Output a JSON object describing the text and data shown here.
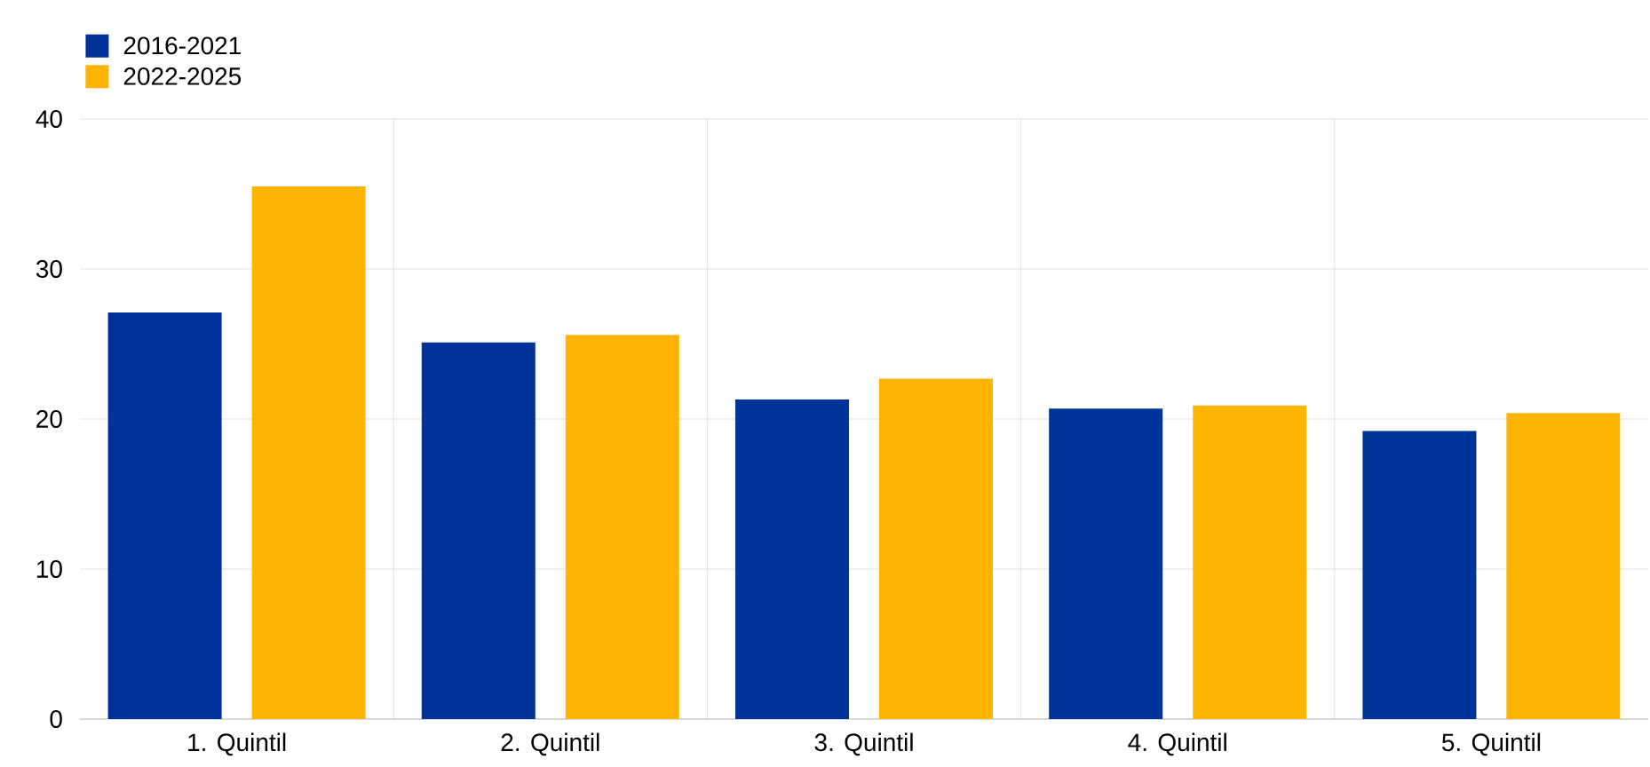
{
  "chart_data": {
    "type": "bar",
    "categories": [
      "1. Quintil",
      "2. Quintil",
      "3. Quintil",
      "4. Quintil",
      "5. Quintil"
    ],
    "series": [
      {
        "name": "2016-2021",
        "color": "#003399",
        "values": [
          27.1,
          25.1,
          21.3,
          20.7,
          19.2
        ]
      },
      {
        "name": "2022-2025",
        "color": "#ffb400",
        "values": [
          35.5,
          25.6,
          22.7,
          20.9,
          20.4
        ]
      }
    ],
    "ylim": [
      0,
      40
    ],
    "yticks": [
      0,
      10,
      20,
      30,
      40
    ],
    "grid": true,
    "legend": "top left"
  }
}
